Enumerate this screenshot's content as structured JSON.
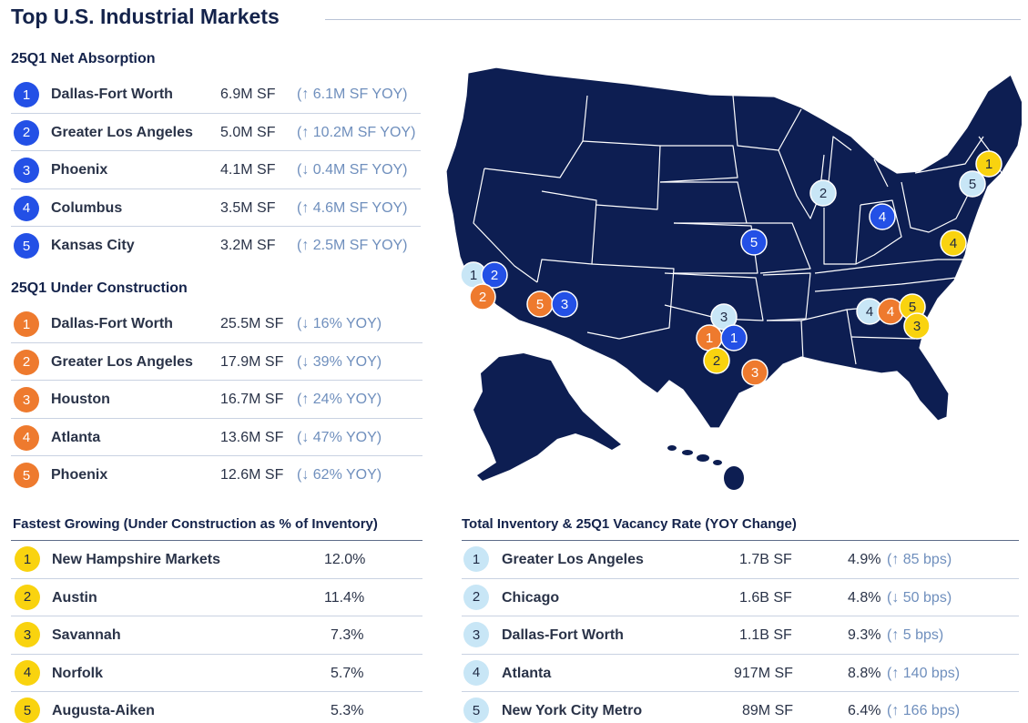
{
  "title": "Top U.S. Industrial Markets",
  "net_absorption": {
    "heading": "25Q1 Net Absorption",
    "rows": [
      {
        "rank": "1",
        "name": "Dallas-Fort Worth",
        "value": "6.9M SF",
        "yoy": "(↑ 6.1M SF YOY)"
      },
      {
        "rank": "2",
        "name": "Greater Los Angeles",
        "value": "5.0M SF",
        "yoy": "(↑ 10.2M SF YOY)"
      },
      {
        "rank": "3",
        "name": "Phoenix",
        "value": "4.1M SF",
        "yoy": "(↓ 0.4M SF YOY)"
      },
      {
        "rank": "4",
        "name": "Columbus",
        "value": "3.5M SF",
        "yoy": "(↑ 4.6M SF YOY)"
      },
      {
        "rank": "5",
        "name": "Kansas City",
        "value": "3.2M SF",
        "yoy": "(↑ 2.5M SF YOY)"
      }
    ]
  },
  "under_construction": {
    "heading": "25Q1 Under Construction",
    "rows": [
      {
        "rank": "1",
        "name": "Dallas-Fort Worth",
        "value": "25.5M SF",
        "yoy": "(↓ 16% YOY)"
      },
      {
        "rank": "2",
        "name": "Greater Los Angeles",
        "value": "17.9M SF",
        "yoy": "(↓ 39% YOY)"
      },
      {
        "rank": "3",
        "name": "Houston",
        "value": "16.7M SF",
        "yoy": "(↑ 24% YOY)"
      },
      {
        "rank": "4",
        "name": "Atlanta",
        "value": "13.6M SF",
        "yoy": "(↓ 47% YOY)"
      },
      {
        "rank": "5",
        "name": "Phoenix",
        "value": "12.6M SF",
        "yoy": "(↓ 62% YOY)"
      }
    ]
  },
  "fastest_growing": {
    "heading": "Fastest Growing (Under Construction as % of Inventory)",
    "rows": [
      {
        "rank": "1",
        "name": "New Hampshire Markets",
        "value": "12.0%"
      },
      {
        "rank": "2",
        "name": "Austin",
        "value": "11.4%"
      },
      {
        "rank": "3",
        "name": "Savannah",
        "value": "7.3%"
      },
      {
        "rank": "4",
        "name": "Norfolk",
        "value": "5.7%"
      },
      {
        "rank": "5",
        "name": "Augusta-Aiken",
        "value": "5.3%"
      }
    ]
  },
  "inventory": {
    "heading": "Total Inventory & 25Q1 Vacancy Rate (YOY Change)",
    "rows": [
      {
        "rank": "1",
        "name": "Greater Los Angeles",
        "inventory": "1.7B SF",
        "vacancy": "4.9%",
        "change": "(↑ 85 bps)"
      },
      {
        "rank": "2",
        "name": "Chicago",
        "inventory": "1.6B SF",
        "vacancy": "4.8%",
        "change": "(↓ 50 bps)"
      },
      {
        "rank": "3",
        "name": "Dallas-Fort Worth",
        "inventory": "1.1B SF",
        "vacancy": "9.3%",
        "change": "(↑ 5 bps)"
      },
      {
        "rank": "4",
        "name": "Atlanta",
        "inventory": "917M SF",
        "vacancy": "8.8%",
        "change": "(↑ 140 bps)"
      },
      {
        "rank": "5",
        "name": "New York City Metro",
        "inventory": "89M SF",
        "vacancy": "6.4%",
        "change": "(↑ 166 bps)"
      }
    ]
  },
  "colors": {
    "net_absorption": "#2350e6",
    "under_construction": "#ee7a2e",
    "fastest_growing": "#f9d30f",
    "inventory": "#c8e6f6",
    "map_fill": "#0d1e52"
  }
}
